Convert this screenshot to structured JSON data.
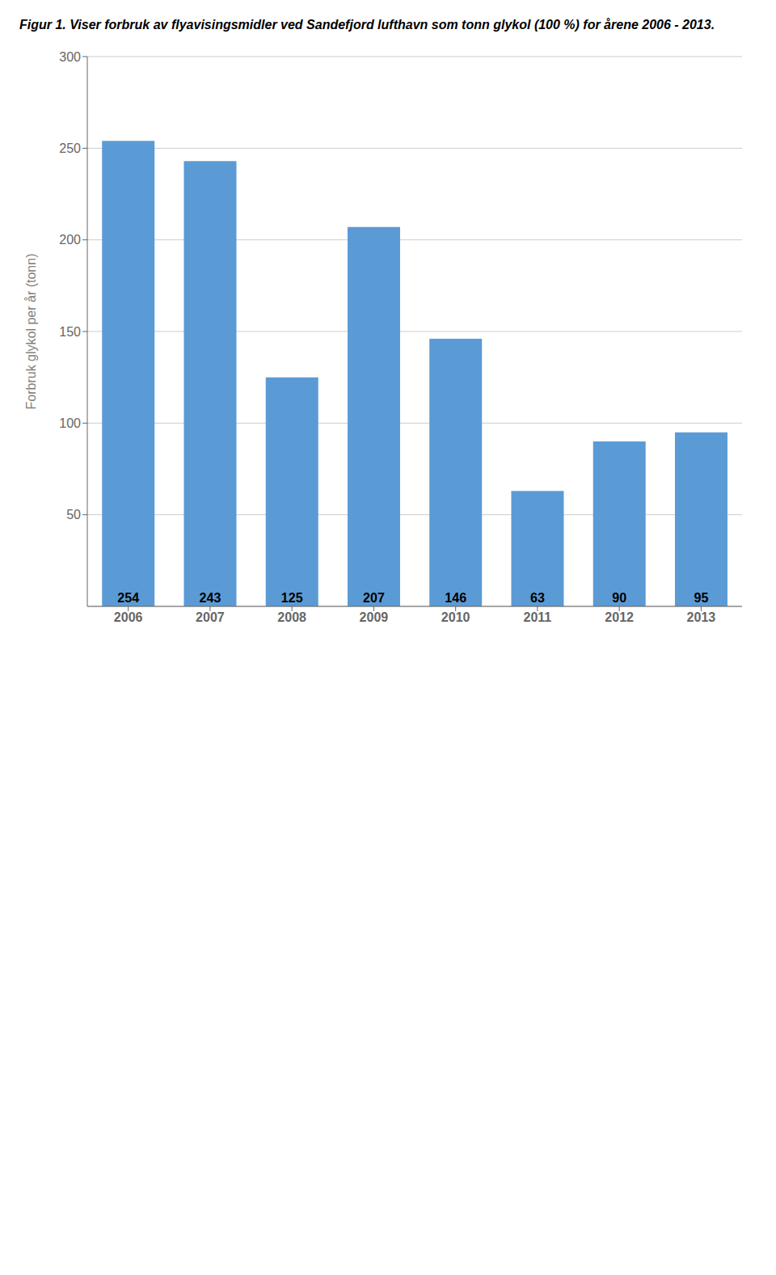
{
  "chart_data": {
    "type": "bar",
    "title": "Figur 1.  Viser forbruk av flyavisingsmidler ved Sandefjord lufthavn som tonn glykol (100 %) for årene 2006 - 2013.",
    "ylabel": "Forbruk glykol per år (tonn)",
    "categories": [
      "2006",
      "2007",
      "2008",
      "2009",
      "2010",
      "2011",
      "2012",
      "2013"
    ],
    "values": [
      254,
      243,
      125,
      207,
      146,
      63,
      90,
      95
    ],
    "color": "#5B9BD5",
    "ylim": [
      0,
      300
    ],
    "yticks": [
      50,
      100,
      150,
      200,
      250,
      300
    ],
    "grid": true,
    "data_labels": true
  }
}
